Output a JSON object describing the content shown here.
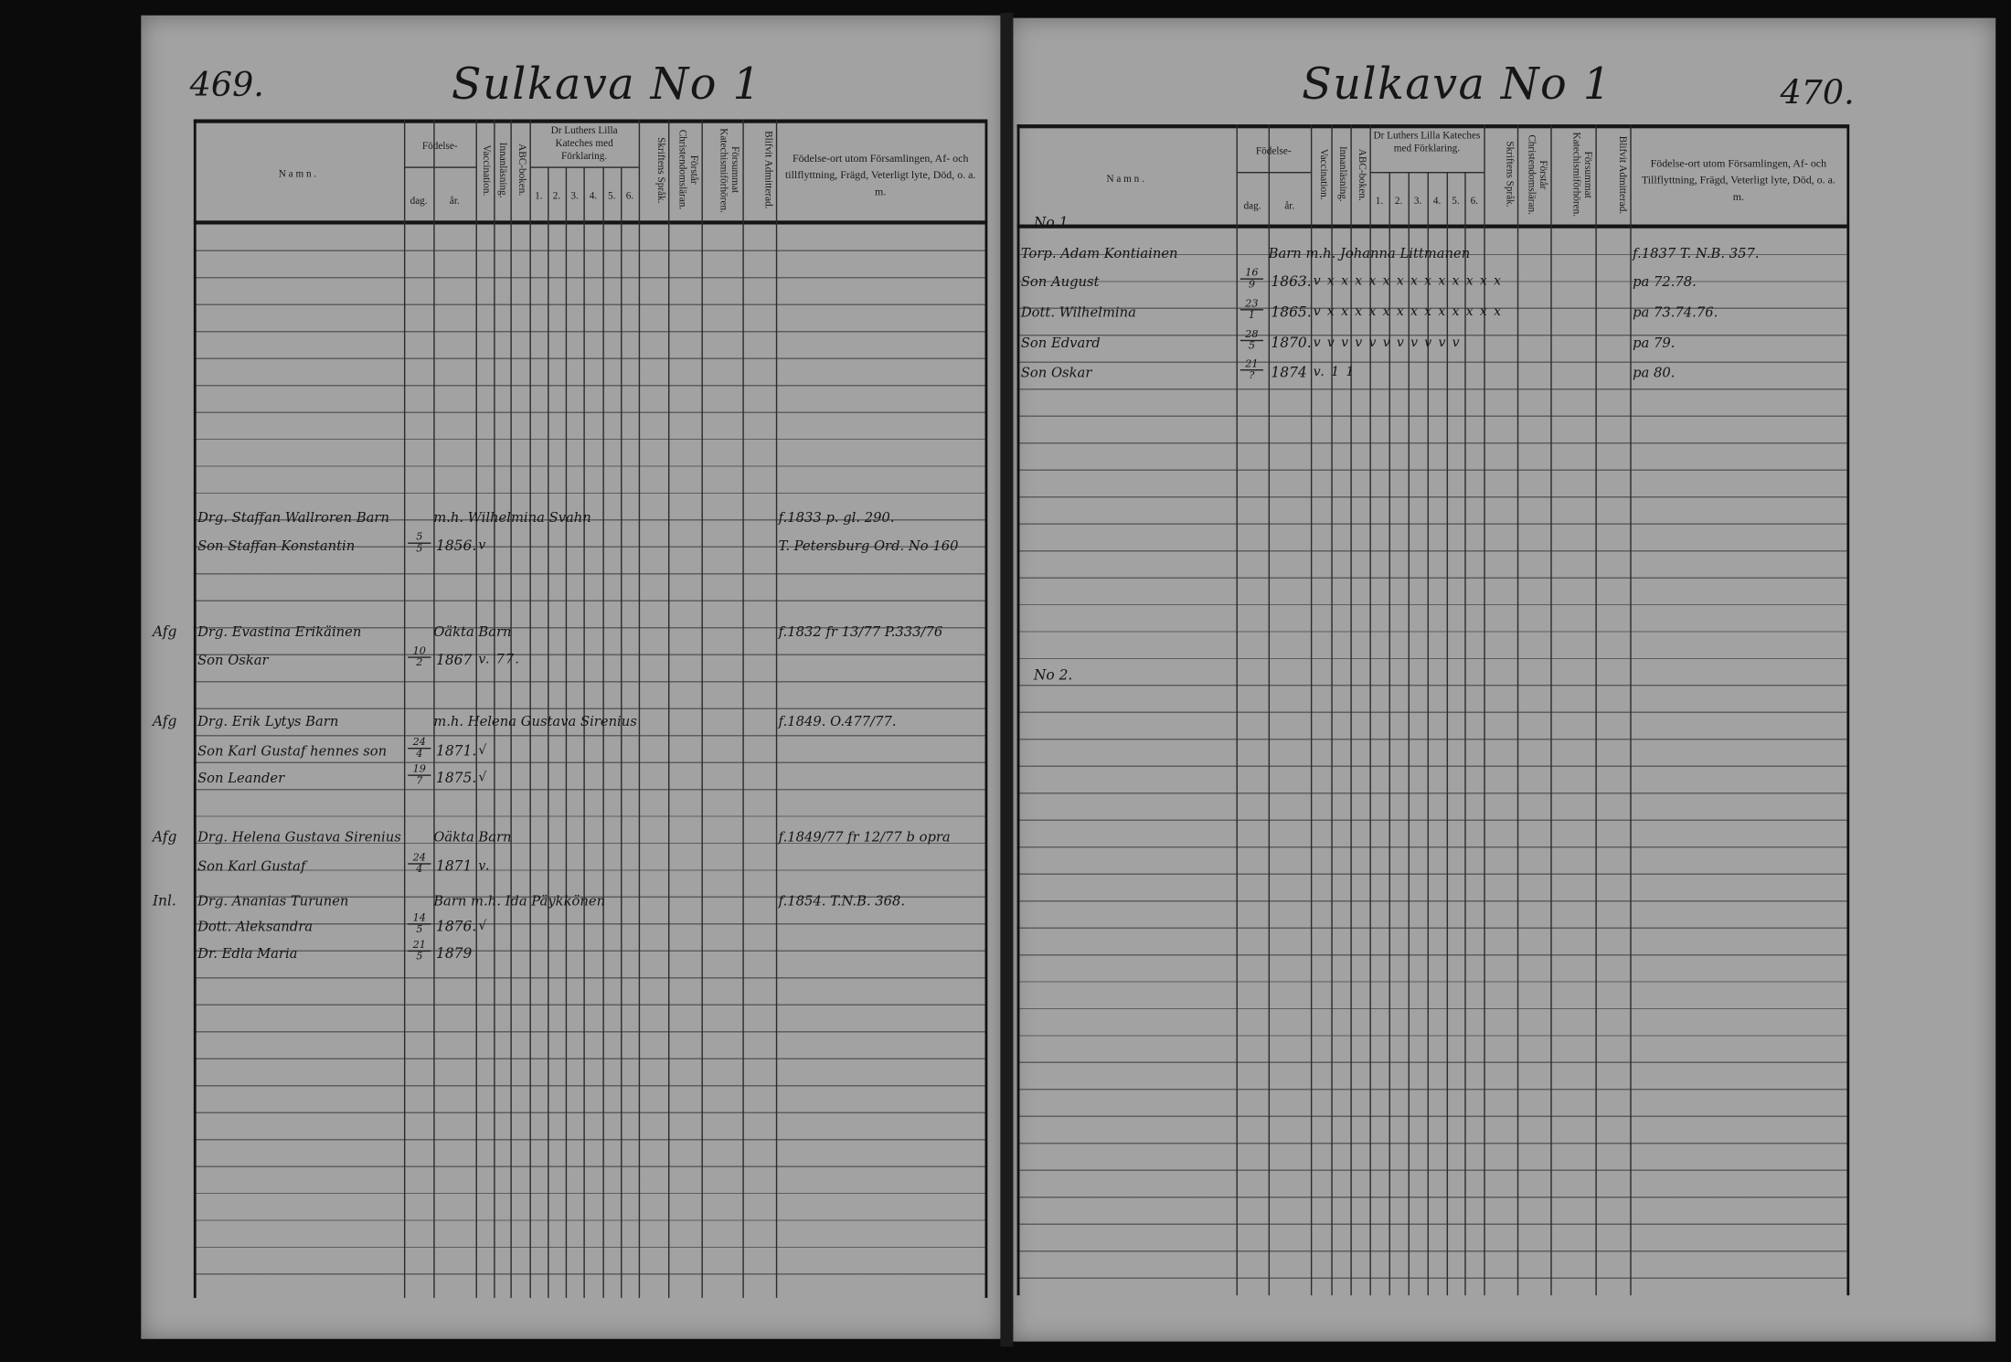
{
  "headers": {
    "namn": "Namn.",
    "fodelse": "Födelse-",
    "dag": "dag.",
    "ar": "år.",
    "vaccination": "Vaccination.",
    "innanlasning": "Innanläsning.",
    "abc_boken": "ABC-boken.",
    "katekes": "Dr Luthers Lilla Kateches med Förklaring.",
    "katekes_cols": [
      "1.",
      "2.",
      "3.",
      "4.",
      "5.",
      "6."
    ],
    "skriftens_sprak": "Skriftens Språk.",
    "forstar": "Förstår Christendomsläran.",
    "forsummat": "Försummat Katechismiförhören.",
    "blifvit": "Blifvit Admitterad.",
    "fodelseort_left": "Födelse-ort utom Församlingen, Af- och tillflyttning, Frägd, Veterligt lyte, Död, o. a. m.",
    "fodelseort_right": "Födelse-ort utom Församlingen, Af- och Tillflyttning, Frägd, Veterligt lyte, Död, o. a. m."
  },
  "left_page": {
    "page_number": "469.",
    "title": "Sulkava No 1",
    "entries": [
      {
        "margin": "",
        "name": "Drg. Staffan Wallroren Barn",
        "day": "",
        "month": "",
        "year": "",
        "marks": "",
        "extra": "m.h. Wilhelmina Svahn",
        "remark": "f.1833 p. gl. 290."
      },
      {
        "margin": "",
        "name": "Son Staffan Konstantin",
        "day": "5",
        "month": "5",
        "year": "1856.",
        "marks": "v",
        "extra": "",
        "remark": "T. Petersburg Ord. No 160"
      },
      {
        "margin": "Afg",
        "name": "Drg. Evastina Erikäinen",
        "day": "",
        "month": "",
        "year": "",
        "marks": "",
        "extra": "Oäkta Barn",
        "remark": "f.1832 fr 13/77 P.333/76"
      },
      {
        "margin": "",
        "name": "Son Oskar",
        "day": "10",
        "month": "2",
        "year": "1867",
        "marks": "v. 77.",
        "extra": "",
        "remark": ""
      },
      {
        "margin": "Afg",
        "name": "Drg. Erik Lytys Barn",
        "day": "",
        "month": "",
        "year": "",
        "marks": "",
        "extra": "m.h. Helena Gustava Sirenius",
        "remark": "f.1849. O.477/77."
      },
      {
        "margin": "",
        "name": "Son Karl Gustaf hennes son",
        "day": "24",
        "month": "4",
        "year": "1871.",
        "marks": "√",
        "extra": "",
        "remark": ""
      },
      {
        "margin": "",
        "name": "Son Leander",
        "day": "19",
        "month": "7",
        "year": "1875.",
        "marks": "√",
        "extra": "",
        "remark": ""
      },
      {
        "margin": "Afg",
        "name": "Drg. Helena Gustava Sirenius",
        "day": "",
        "month": "",
        "year": "",
        "marks": "",
        "extra": "Oäkta Barn",
        "remark": "f.1849/77 fr 12/77 b opra"
      },
      {
        "margin": "",
        "name": "Son Karl Gustaf",
        "day": "24",
        "month": "4",
        "year": "1871",
        "marks": "v.",
        "extra": "",
        "remark": ""
      },
      {
        "margin": "Inl.",
        "name": "Drg. Ananias Turunen",
        "day": "",
        "month": "",
        "year": "",
        "marks": "",
        "extra": "Barn m.h. Ida Päykkönen",
        "remark": "f.1854. T.N.B. 368."
      },
      {
        "margin": "",
        "name": "Dott. Aleksandra",
        "day": "14",
        "month": "5",
        "year": "1876.",
        "marks": "√",
        "extra": "",
        "remark": ""
      },
      {
        "margin": "",
        "name": "Dr. Edla Maria",
        "day": "21",
        "month": "5",
        "year": "1879",
        "marks": "",
        "extra": "",
        "remark": ""
      }
    ]
  },
  "right_page": {
    "page_number": "470.",
    "title": "Sulkava No 1",
    "section_labels": [
      "No 1.",
      "No 2."
    ],
    "entries": [
      {
        "name": "Torp. Adam Kontiainen",
        "day": "",
        "month": "",
        "year": "",
        "marks": "",
        "extra": "Barn m.h. Johanna Littmanen",
        "remark": "f.1837 T. N.B. 357."
      },
      {
        "name": "Son August",
        "day": "16",
        "month": "9",
        "year": "1863.",
        "marks": "v x x x  x x x x x x x x x x",
        "extra": "",
        "remark": "pa 72.78."
      },
      {
        "name": "Dott. Wilhelmina",
        "day": "23",
        "month": "1",
        "year": "1865.",
        "marks": "v x x x  x x x x x x x x x x",
        "extra": "",
        "remark": "pa 73.74.76."
      },
      {
        "name": "Son Edvard",
        "day": "28",
        "month": "5",
        "year": "1870.",
        "marks": "v v v v  v v v v v v v",
        "extra": "",
        "remark": "pa 79."
      },
      {
        "name": "Son Oskar",
        "day": "21",
        "month": "?",
        "year": "1874",
        "marks": "v.  1  1",
        "extra": "",
        "remark": "pa 80."
      }
    ]
  }
}
